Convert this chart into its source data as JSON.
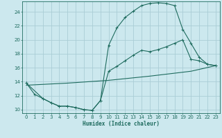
{
  "xlabel": "Humidex (Indice chaleur)",
  "background_color": "#cce8ee",
  "grid_color": "#aacdd6",
  "line_color": "#1e6b5e",
  "xlim": [
    -0.5,
    23.5
  ],
  "ylim": [
    9.5,
    25.5
  ],
  "xticks": [
    0,
    1,
    2,
    3,
    4,
    5,
    6,
    7,
    8,
    9,
    10,
    11,
    12,
    13,
    14,
    15,
    16,
    17,
    18,
    19,
    20,
    21,
    22,
    23
  ],
  "yticks": [
    10,
    12,
    14,
    16,
    18,
    20,
    22,
    24
  ],
  "curve1_x": [
    0,
    1,
    2,
    3,
    4,
    5,
    6,
    7,
    8,
    9,
    10,
    11,
    12,
    13,
    14,
    15,
    16,
    17,
    18,
    19,
    20,
    21,
    22,
    23
  ],
  "curve1_y": [
    13.8,
    12.2,
    11.6,
    11.0,
    10.5,
    10.5,
    10.3,
    10.0,
    9.9,
    11.3,
    19.2,
    21.7,
    23.2,
    24.1,
    24.9,
    25.2,
    25.3,
    25.2,
    24.9,
    21.5,
    19.5,
    17.5,
    16.5,
    16.3
  ],
  "curve2_x": [
    0,
    2,
    3,
    4,
    5,
    6,
    7,
    8,
    9,
    10,
    11,
    12,
    13,
    14,
    15,
    16,
    17,
    18,
    19,
    20,
    21,
    22,
    23
  ],
  "curve2_y": [
    13.8,
    11.6,
    11.0,
    10.5,
    10.5,
    10.3,
    10.0,
    9.9,
    11.3,
    15.5,
    16.2,
    17.0,
    17.8,
    18.5,
    18.3,
    18.6,
    19.0,
    19.5,
    20.0,
    17.2,
    17.0,
    16.5,
    16.3
  ],
  "curve3_x": [
    0,
    5,
    10,
    15,
    20,
    23
  ],
  "curve3_y": [
    13.5,
    13.8,
    14.2,
    14.8,
    15.5,
    16.3
  ]
}
